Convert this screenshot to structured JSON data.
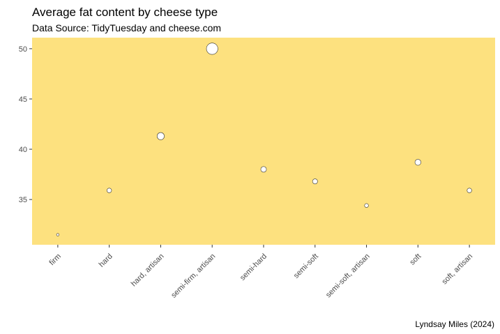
{
  "chart_data": {
    "type": "scatter",
    "title": "Average fat content by cheese type",
    "subtitle": "Data Source: TidyTuesday and cheese.com",
    "caption": "Lyndsay Miles (2024)",
    "xlabel": "",
    "ylabel": "",
    "categories": [
      "firm",
      "hard",
      "hard, artisan",
      "semi-firm, artisan",
      "semi-hard",
      "semi-soft",
      "semi-soft, artisan",
      "soft",
      "soft, artisan"
    ],
    "values": [
      31.5,
      35.9,
      41.3,
      50.0,
      38.0,
      36.8,
      34.4,
      38.7,
      35.9
    ],
    "ylim": [
      30.5,
      51.1
    ],
    "yticks": [
      35,
      40,
      45,
      50
    ],
    "grid": false,
    "legend": "none",
    "colors": {
      "panel": "#FDE17F",
      "point_fill": "#FFFFFF",
      "point_stroke": "#333333",
      "tick_label": "#4D4D4D"
    }
  }
}
